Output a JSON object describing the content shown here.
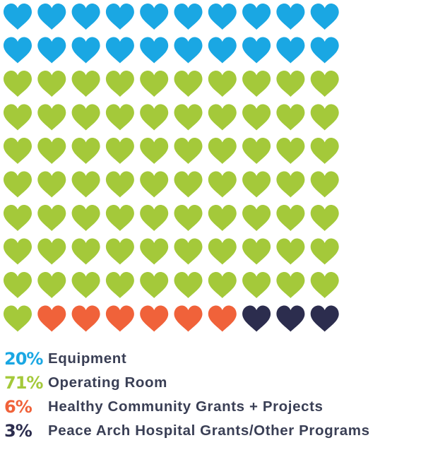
{
  "chart_data": {
    "type": "waffle",
    "unit": "heart",
    "total": 100,
    "columns": 10,
    "rows": 10,
    "categories": [
      {
        "percent": "20%",
        "label": "Equipment",
        "value": 20,
        "color": "#1aa7e3"
      },
      {
        "percent": "71%",
        "label": "Operating Room",
        "value": 71,
        "color": "#a4c93a"
      },
      {
        "percent": "6%",
        "label": "Healthy Community Grants + Projects",
        "value": 6,
        "color": "#f0623a"
      },
      {
        "percent": "3%",
        "label": "Peace Arch Hospital Grants/Other Programs",
        "value": 3,
        "color": "#2c2d4e"
      }
    ],
    "legend_position": "bottom-left"
  }
}
